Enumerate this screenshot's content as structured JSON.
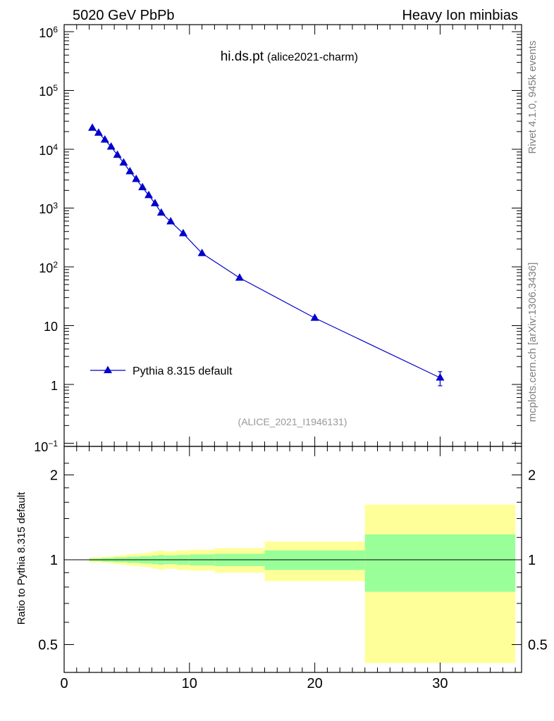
{
  "header": {
    "left_label": "5020 GeV PbPb",
    "right_label": "Heavy Ion minbias"
  },
  "side": {
    "rivet_label": "Rivet 4.1.0,  945k events",
    "site_label": "mcplots.cern.ch [arXiv:1306.3436]"
  },
  "chart_data": {
    "type": "line",
    "title": "hi.ds.pt",
    "subtitle": "(alice2021-charm)",
    "analysis": "(ALICE_2021_I1946131)",
    "xlabel": "",
    "ylabel": "",
    "xlim": [
      0,
      36.5
    ],
    "ylim": [
      0.1,
      1000000
    ],
    "yscale": "log",
    "x_ticks": [
      "0",
      "10",
      "20",
      "30"
    ],
    "y_ticks": [
      "10^-1",
      "1",
      "10",
      "10^2",
      "10^3",
      "10^4",
      "10^5",
      "10^6"
    ],
    "legend": "Pythia 8.315 default",
    "legend_position": "bottom-left",
    "series": [
      {
        "name": "Pythia 8.315 default",
        "color": "#0000cc",
        "x": [
          2.25,
          2.75,
          3.25,
          3.75,
          4.25,
          4.75,
          5.25,
          5.75,
          6.25,
          6.75,
          7.25,
          7.75,
          8.5,
          9.5,
          11,
          14,
          20,
          30
        ],
        "y": [
          23000,
          19000,
          14500,
          11000,
          8000,
          5900,
          4200,
          3100,
          2250,
          1650,
          1200,
          830,
          590,
          370,
          170,
          65,
          13.5,
          1.3
        ],
        "yerr": [
          0,
          0,
          0,
          0,
          0,
          0,
          0,
          0,
          0,
          0,
          0,
          0,
          0,
          0,
          0,
          0,
          0.5,
          0.35
        ]
      }
    ],
    "ratio": {
      "ylabel": "Ratio to Pythia 8.315 default",
      "ylim": [
        0.4,
        2.4
      ],
      "y_ticks": [
        "0.5",
        "1",
        "2"
      ],
      "x_ticks": [
        "0",
        "10",
        "20",
        "30"
      ],
      "reference": 1,
      "bins": [
        {
          "lo": 2.0,
          "hi": 2.5,
          "g_lo": 0.99,
          "g_hi": 1.01,
          "y_lo": 0.98,
          "y_hi": 1.02
        },
        {
          "lo": 2.5,
          "hi": 3.0,
          "g_lo": 0.99,
          "g_hi": 1.01,
          "y_lo": 0.98,
          "y_hi": 1.02
        },
        {
          "lo": 3.0,
          "hi": 3.5,
          "g_lo": 0.985,
          "g_hi": 1.015,
          "y_lo": 0.975,
          "y_hi": 1.025
        },
        {
          "lo": 3.5,
          "hi": 4.0,
          "g_lo": 0.985,
          "g_hi": 1.015,
          "y_lo": 0.97,
          "y_hi": 1.03
        },
        {
          "lo": 4.0,
          "hi": 4.5,
          "g_lo": 0.98,
          "g_hi": 1.02,
          "y_lo": 0.965,
          "y_hi": 1.035
        },
        {
          "lo": 4.5,
          "hi": 5.0,
          "g_lo": 0.98,
          "g_hi": 1.02,
          "y_lo": 0.96,
          "y_hi": 1.04
        },
        {
          "lo": 5.0,
          "hi": 5.5,
          "g_lo": 0.975,
          "g_hi": 1.025,
          "y_lo": 0.955,
          "y_hi": 1.045
        },
        {
          "lo": 5.5,
          "hi": 6.0,
          "g_lo": 0.975,
          "g_hi": 1.025,
          "y_lo": 0.95,
          "y_hi": 1.05
        },
        {
          "lo": 6.0,
          "hi": 6.5,
          "g_lo": 0.97,
          "g_hi": 1.03,
          "y_lo": 0.945,
          "y_hi": 1.055
        },
        {
          "lo": 6.5,
          "hi": 7.0,
          "g_lo": 0.97,
          "g_hi": 1.03,
          "y_lo": 0.94,
          "y_hi": 1.06
        },
        {
          "lo": 7.0,
          "hi": 7.5,
          "g_lo": 0.965,
          "g_hi": 1.035,
          "y_lo": 0.93,
          "y_hi": 1.07
        },
        {
          "lo": 7.5,
          "hi": 8.0,
          "g_lo": 0.96,
          "g_hi": 1.04,
          "y_lo": 0.92,
          "y_hi": 1.08
        },
        {
          "lo": 8.0,
          "hi": 9.0,
          "g_lo": 0.965,
          "g_hi": 1.035,
          "y_lo": 0.93,
          "y_hi": 1.07
        },
        {
          "lo": 9.0,
          "hi": 10.0,
          "g_lo": 0.96,
          "g_hi": 1.04,
          "y_lo": 0.92,
          "y_hi": 1.08
        },
        {
          "lo": 10.0,
          "hi": 12.0,
          "g_lo": 0.955,
          "g_hi": 1.045,
          "y_lo": 0.915,
          "y_hi": 1.085
        },
        {
          "lo": 12.0,
          "hi": 16.0,
          "g_lo": 0.95,
          "g_hi": 1.05,
          "y_lo": 0.9,
          "y_hi": 1.1
        },
        {
          "lo": 16.0,
          "hi": 24.0,
          "g_lo": 0.92,
          "g_hi": 1.08,
          "y_lo": 0.84,
          "y_hi": 1.16
        },
        {
          "lo": 24.0,
          "hi": 36.0,
          "g_lo": 0.77,
          "g_hi": 1.23,
          "y_lo": 0.43,
          "y_hi": 1.57
        }
      ]
    }
  },
  "colors": {
    "series": "#0000cc",
    "band_inner": "#99ff99",
    "band_outer": "#ffff99",
    "gray_text": "#808080"
  }
}
